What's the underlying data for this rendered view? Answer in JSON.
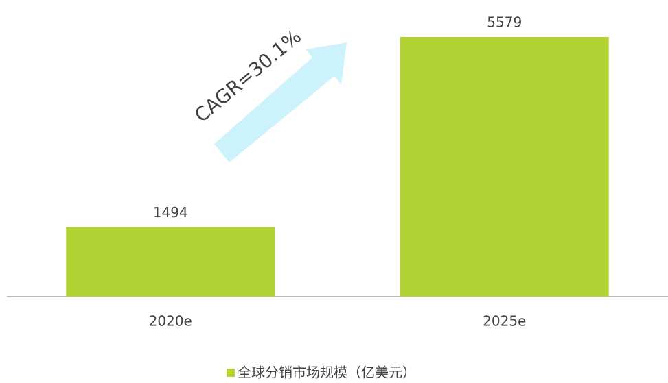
{
  "chart_data": {
    "type": "bar",
    "categories": [
      "2020e",
      "2025e"
    ],
    "series": [
      {
        "name": "全球分销市场规模（亿美元）",
        "color": "#b3d334",
        "values": [
          1494,
          5579
        ]
      }
    ],
    "annotation": "CAGR=30.1%",
    "legend": "bottom"
  }
}
